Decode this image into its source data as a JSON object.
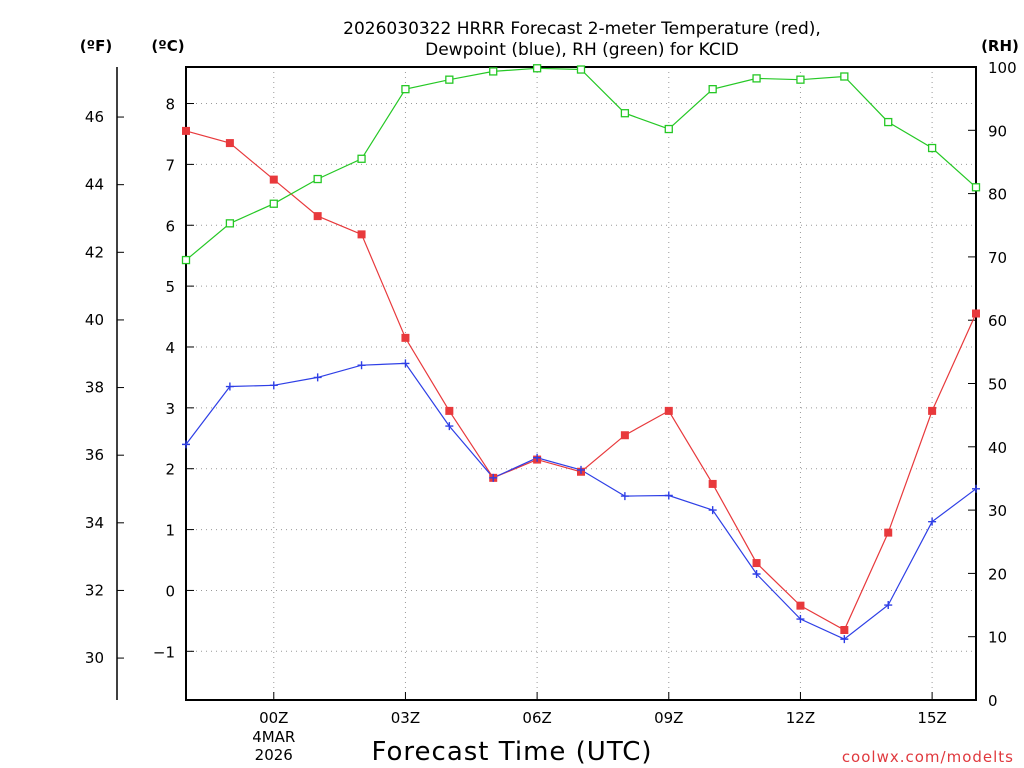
{
  "chart_data": {
    "type": "line",
    "title_line1": "2026030322 HRRR Forecast 2-meter Temperature (red),",
    "title_line2": "Dewpoint (blue), RH (green) for KCID",
    "unit_left_f": "(ºF)",
    "unit_left_c": "(ºC)",
    "unit_right": "(RH)",
    "xlabel": "Forecast Time (UTC)",
    "credit": "coolwx.com/modelts",
    "x_range": [
      -2,
      16
    ],
    "c_range": [
      -1.8,
      8.6
    ],
    "rh_range": [
      0,
      100
    ],
    "f_ticks": [
      30,
      32,
      34,
      36,
      38,
      40,
      42,
      44,
      46
    ],
    "c_ticks": [
      -1,
      0,
      1,
      2,
      3,
      4,
      5,
      6,
      7,
      8
    ],
    "rh_ticks": [
      0,
      10,
      20,
      30,
      40,
      50,
      60,
      70,
      80,
      90,
      100
    ],
    "x_ticks": [
      {
        "hour": 0,
        "label": "00Z",
        "sub1": "4MAR",
        "sub2": "2026"
      },
      {
        "hour": 3,
        "label": "03Z"
      },
      {
        "hour": 6,
        "label": "06Z"
      },
      {
        "hour": 9,
        "label": "09Z"
      },
      {
        "hour": 12,
        "label": "12Z"
      },
      {
        "hour": 15,
        "label": "15Z"
      }
    ],
    "x": [
      -2,
      -1,
      0,
      1,
      2,
      3,
      4,
      5,
      6,
      7,
      8,
      9,
      10,
      11,
      12,
      13,
      14,
      15,
      16
    ],
    "series": [
      {
        "name": "2-meter Temperature",
        "axis": "c",
        "color": "#e8393c",
        "marker": "filled-square",
        "values": [
          7.55,
          7.35,
          6.75,
          6.15,
          5.85,
          4.15,
          2.95,
          1.85,
          2.15,
          1.95,
          2.55,
          2.95,
          1.75,
          0.45,
          -0.25,
          -0.65,
          0.95,
          2.95,
          4.55
        ]
      },
      {
        "name": "Dewpoint",
        "axis": "c",
        "color": "#2e3fe6",
        "marker": "plus",
        "values": [
          2.4,
          3.35,
          3.37,
          3.5,
          3.7,
          3.73,
          2.7,
          1.85,
          2.18,
          1.98,
          1.55,
          1.56,
          1.32,
          0.27,
          -0.47,
          -0.8,
          -0.24,
          1.13,
          1.67
        ]
      },
      {
        "name": "RH",
        "axis": "rh",
        "color": "#25c825",
        "marker": "open-square",
        "values": [
          69.5,
          75.3,
          78.4,
          82.3,
          85.5,
          96.5,
          98.0,
          99.3,
          99.8,
          99.6,
          92.7,
          90.2,
          96.5,
          98.2,
          98.0,
          98.5,
          91.3,
          87.2,
          81.0
        ]
      }
    ]
  }
}
